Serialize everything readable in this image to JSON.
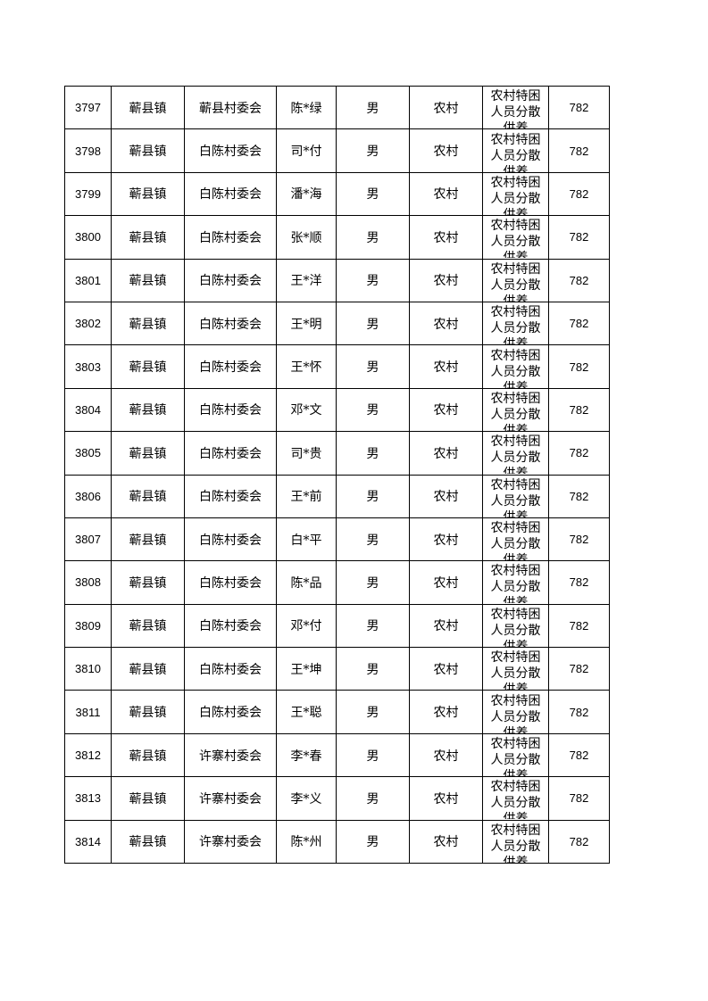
{
  "table": {
    "rows": [
      {
        "id": "3797",
        "town": "蕲县镇",
        "village": "蕲县村委会",
        "name": "陈*绿",
        "gender": "男",
        "area": "农村",
        "category": "农村特困人员分散供养",
        "amount": "782"
      },
      {
        "id": "3798",
        "town": "蕲县镇",
        "village": "白陈村委会",
        "name": "司*付",
        "gender": "男",
        "area": "农村",
        "category": "农村特困人员分散供养",
        "amount": "782"
      },
      {
        "id": "3799",
        "town": "蕲县镇",
        "village": "白陈村委会",
        "name": "潘*海",
        "gender": "男",
        "area": "农村",
        "category": "农村特困人员分散供养",
        "amount": "782"
      },
      {
        "id": "3800",
        "town": "蕲县镇",
        "village": "白陈村委会",
        "name": "张*顺",
        "gender": "男",
        "area": "农村",
        "category": "农村特困人员分散供养",
        "amount": "782"
      },
      {
        "id": "3801",
        "town": "蕲县镇",
        "village": "白陈村委会",
        "name": "王*洋",
        "gender": "男",
        "area": "农村",
        "category": "农村特困人员分散供养",
        "amount": "782"
      },
      {
        "id": "3802",
        "town": "蕲县镇",
        "village": "白陈村委会",
        "name": "王*明",
        "gender": "男",
        "area": "农村",
        "category": "农村特困人员分散供养",
        "amount": "782"
      },
      {
        "id": "3803",
        "town": "蕲县镇",
        "village": "白陈村委会",
        "name": "王*怀",
        "gender": "男",
        "area": "农村",
        "category": "农村特困人员分散供养",
        "amount": "782"
      },
      {
        "id": "3804",
        "town": "蕲县镇",
        "village": "白陈村委会",
        "name": "邓*文",
        "gender": "男",
        "area": "农村",
        "category": "农村特困人员分散供养",
        "amount": "782"
      },
      {
        "id": "3805",
        "town": "蕲县镇",
        "village": "白陈村委会",
        "name": "司*贵",
        "gender": "男",
        "area": "农村",
        "category": "农村特困人员分散供养",
        "amount": "782"
      },
      {
        "id": "3806",
        "town": "蕲县镇",
        "village": "白陈村委会",
        "name": "王*前",
        "gender": "男",
        "area": "农村",
        "category": "农村特困人员分散供养",
        "amount": "782"
      },
      {
        "id": "3807",
        "town": "蕲县镇",
        "village": "白陈村委会",
        "name": "白*平",
        "gender": "男",
        "area": "农村",
        "category": "农村特困人员分散供养",
        "amount": "782"
      },
      {
        "id": "3808",
        "town": "蕲县镇",
        "village": "白陈村委会",
        "name": "陈*品",
        "gender": "男",
        "area": "农村",
        "category": "农村特困人员分散供养",
        "amount": "782"
      },
      {
        "id": "3809",
        "town": "蕲县镇",
        "village": "白陈村委会",
        "name": "邓*付",
        "gender": "男",
        "area": "农村",
        "category": "农村特困人员分散供养",
        "amount": "782"
      },
      {
        "id": "3810",
        "town": "蕲县镇",
        "village": "白陈村委会",
        "name": "王*坤",
        "gender": "男",
        "area": "农村",
        "category": "农村特困人员分散供养",
        "amount": "782"
      },
      {
        "id": "3811",
        "town": "蕲县镇",
        "village": "白陈村委会",
        "name": "王*聪",
        "gender": "男",
        "area": "农村",
        "category": "农村特困人员分散供养",
        "amount": "782"
      },
      {
        "id": "3812",
        "town": "蕲县镇",
        "village": "许寨村委会",
        "name": "李*春",
        "gender": "男",
        "area": "农村",
        "category": "农村特困人员分散供养",
        "amount": "782"
      },
      {
        "id": "3813",
        "town": "蕲县镇",
        "village": "许寨村委会",
        "name": "李*义",
        "gender": "男",
        "area": "农村",
        "category": "农村特困人员分散供养",
        "amount": "782"
      },
      {
        "id": "3814",
        "town": "蕲县镇",
        "village": "许寨村委会",
        "name": "陈*州",
        "gender": "男",
        "area": "农村",
        "category": "农村特困人员分散供养",
        "amount": "782"
      }
    ]
  }
}
